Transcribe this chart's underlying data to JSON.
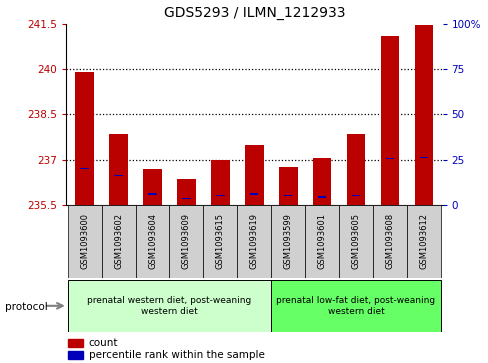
{
  "title": "GDS5293 / ILMN_1212933",
  "samples": [
    "GSM1093600",
    "GSM1093602",
    "GSM1093604",
    "GSM1093609",
    "GSM1093615",
    "GSM1093619",
    "GSM1093599",
    "GSM1093601",
    "GSM1093605",
    "GSM1093608",
    "GSM1093612"
  ],
  "red_values": [
    239.9,
    237.85,
    236.7,
    236.35,
    237.0,
    237.5,
    236.75,
    237.05,
    237.85,
    241.1,
    241.45
  ],
  "blue_positions": [
    236.7,
    236.45,
    235.85,
    235.7,
    235.8,
    235.85,
    235.8,
    235.75,
    235.8,
    237.02,
    237.05
  ],
  "y_min": 235.5,
  "y_max": 241.5,
  "y_ticks": [
    235.5,
    237.0,
    238.5,
    240.0,
    241.5
  ],
  "y_tick_labels": [
    "235.5",
    "237",
    "238.5",
    "240",
    "241.5"
  ],
  "right_y_ticks": [
    235.5,
    237.0,
    238.5,
    240.0,
    241.5
  ],
  "right_y_labels": [
    "0",
    "25",
    "50",
    "75",
    "100%"
  ],
  "group1_label": "prenatal western diet, post-weaning\nwestern diet",
  "group2_label": "prenatal low-fat diet, post-weaning\nwestern diet",
  "group1_color": "#ccffcc",
  "group2_color": "#66ff66",
  "group1_count": 6,
  "group2_count": 5,
  "protocol_label": "protocol",
  "legend_count": "count",
  "legend_pct": "percentile rank within the sample",
  "red_color": "#bb0000",
  "blue_color": "#0000bb",
  "bar_width": 0.55,
  "blue_size": 0.04,
  "panel_bg": "#d0d0d0",
  "bg_color": "#ffffff"
}
